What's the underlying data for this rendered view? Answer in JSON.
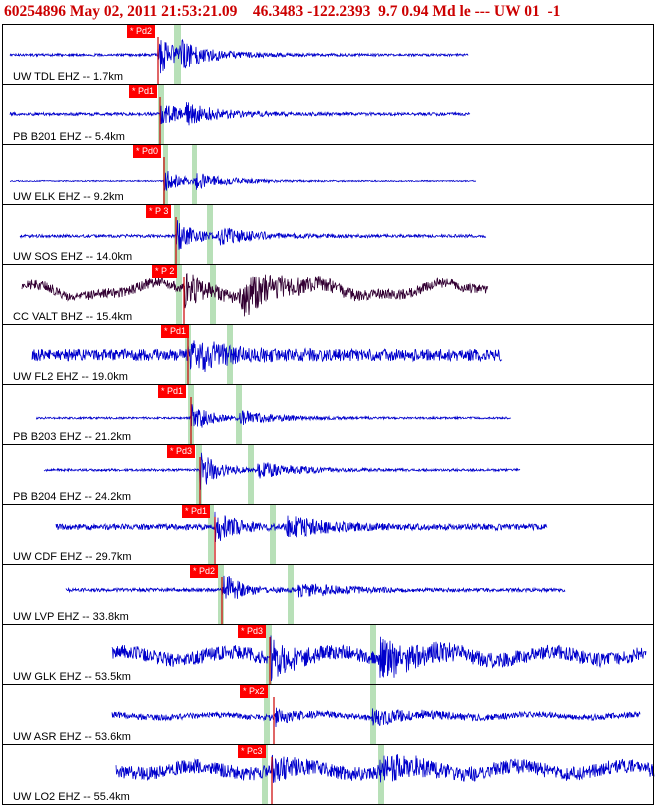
{
  "header": {
    "text": "60254896 May 02, 2011 21:53:21.09    46.3483 -122.2393  9.7 0.94 Md le --- UW 01  -1"
  },
  "colors": {
    "header_text": "#cc0000",
    "trace_default": "#0000cc",
    "trace_broadband": "#330033",
    "pick_tag_bg": "#ff0000",
    "pick_tag_text": "#ffffff",
    "p_line": "#cc0000",
    "theoretical_band": "#b8e0b8"
  },
  "traces": [
    {
      "label": "UW TDL EHZ -- 1.7km",
      "pick": "* Pd2"
    },
    {
      "label": "PB B201 EHZ -- 5.4km",
      "pick": "* Pd1"
    },
    {
      "label": "UW ELK EHZ -- 9.2km",
      "pick": "* Pd0"
    },
    {
      "label": "UW SOS EHZ -- 14.0km",
      "pick": "* P 3"
    },
    {
      "label": "CC VALT BHZ -- 15.4km",
      "pick": "* P 2"
    },
    {
      "label": "UW FL2 EHZ -- 19.0km",
      "pick": "* Pd1"
    },
    {
      "label": "PB B203 EHZ -- 21.2km",
      "pick": "* Pd1"
    },
    {
      "label": "PB B204 EHZ -- 24.2km",
      "pick": "* Pd3"
    },
    {
      "label": "UW CDF EHZ -- 29.7km",
      "pick": "* Pd1"
    },
    {
      "label": "UW LVP EHZ -- 33.8km",
      "pick": "* Pd2"
    },
    {
      "label": "UW GLK EHZ -- 53.5km",
      "pick": "* Pd3"
    },
    {
      "label": "UW ASR EHZ -- 53.6km",
      "pick": "* Px2"
    },
    {
      "label": "UW LO2 EHZ -- 55.4km",
      "pick": "* Pc3"
    }
  ]
}
